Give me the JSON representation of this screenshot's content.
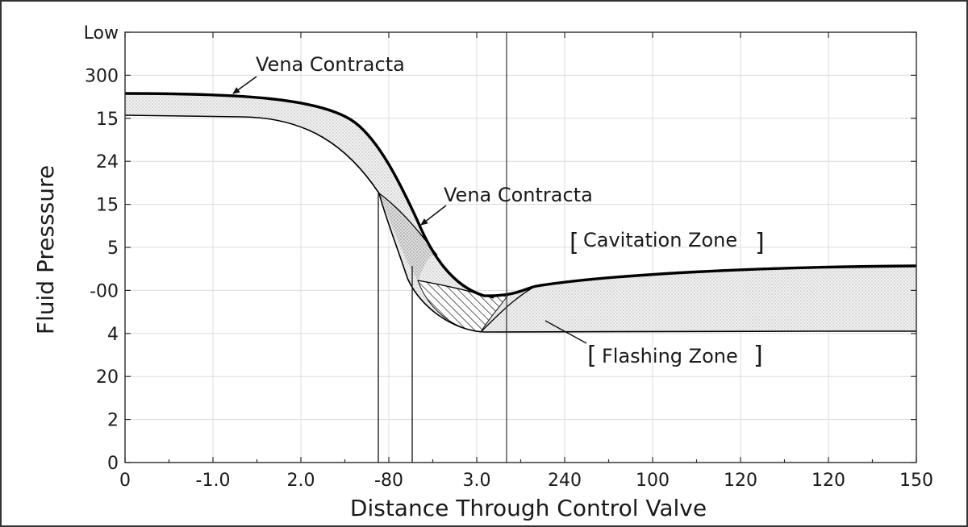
{
  "chart_data": {
    "type": "area",
    "xlabel": "Distance Through Control Valve",
    "ylabel": "Fluid Presssure",
    "x_tick_labels": [
      "0",
      "-1.0",
      "2.0",
      "-80",
      "3.0",
      "240",
      "100",
      "120",
      "120",
      "150"
    ],
    "y_tick_labels": [
      "0",
      "2",
      "20",
      "4",
      "-00",
      "5",
      "15",
      "24",
      "15",
      "300",
      "Low"
    ],
    "grid": true,
    "annotations": {
      "vena_contracta_top": "Vena Contracta",
      "vena_contracta_mid": "Vena Contracta",
      "cavitation_zone": "Cavitation Zone",
      "flashing_zone": "Flashing Zone"
    },
    "bracket_open": "[",
    "bracket_close": "]"
  }
}
